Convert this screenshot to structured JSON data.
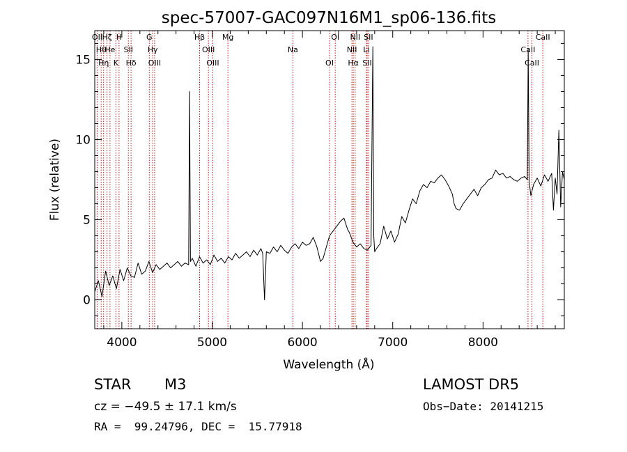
{
  "chart_data": {
    "type": "line",
    "title": "spec-57007-GAC097N16M1_sp06-136.fits",
    "xlabel": "Wavelength (Å)",
    "ylabel": "Flux (relative)",
    "xlim": [
      3700,
      8900
    ],
    "ylim": [
      -1.8,
      16.8
    ],
    "x_ticks": [
      4000,
      5000,
      6000,
      7000,
      8000
    ],
    "x_tick_labels": [
      "4000",
      "5000",
      "6000",
      "7000",
      "8000"
    ],
    "y_ticks": [
      0,
      5,
      10,
      15
    ],
    "y_tick_labels": [
      "0",
      "5",
      "10",
      "15"
    ],
    "grid": false,
    "series": [
      {
        "x": [
          3700,
          3740,
          3780,
          3820,
          3860,
          3900,
          3940,
          3980,
          4020,
          4060,
          4100,
          4140,
          4180,
          4220,
          4260,
          4300,
          4340,
          4380,
          4420,
          4460,
          4500,
          4540,
          4580,
          4620,
          4660,
          4700,
          4740,
          4750,
          4760,
          4780,
          4820,
          4860,
          4900,
          4940,
          4980,
          5020,
          5060,
          5100,
          5140,
          5180,
          5220,
          5260,
          5300,
          5340,
          5380,
          5420,
          5460,
          5500,
          5540,
          5560,
          5580,
          5600,
          5640,
          5680,
          5720,
          5760,
          5800,
          5840,
          5880,
          5920,
          5960,
          6000,
          6040,
          6080,
          6120,
          6160,
          6200,
          6230,
          6260,
          6300,
          6340,
          6380,
          6420,
          6460,
          6500,
          6520,
          6540,
          6560,
          6600,
          6640,
          6680,
          6720,
          6760,
          6780,
          6790,
          6800,
          6820,
          6860,
          6900,
          6940,
          6980,
          7020,
          7060,
          7100,
          7140,
          7180,
          7220,
          7260,
          7300,
          7340,
          7380,
          7420,
          7460,
          7500,
          7540,
          7580,
          7620,
          7660,
          7680,
          7700,
          7740,
          7780,
          7820,
          7860,
          7900,
          7940,
          7980,
          8020,
          8060,
          8100,
          8140,
          8180,
          8220,
          8260,
          8300,
          8340,
          8380,
          8420,
          8460,
          8490,
          8500,
          8510,
          8530,
          8560,
          8600,
          8640,
          8680,
          8720,
          8760,
          8780,
          8800,
          8820,
          8840,
          8860,
          8880,
          8900
        ],
        "y": [
          0.5,
          1.2,
          0.2,
          1.8,
          0.9,
          1.5,
          0.7,
          1.9,
          1.2,
          2.0,
          1.5,
          1.4,
          2.3,
          1.6,
          1.8,
          2.4,
          1.7,
          2.2,
          1.9,
          2.1,
          2.3,
          2.0,
          2.2,
          2.4,
          2.1,
          2.3,
          2.2,
          13.0,
          2.4,
          2.6,
          2.1,
          2.7,
          2.3,
          2.5,
          2.2,
          2.8,
          2.4,
          2.6,
          2.3,
          2.7,
          2.5,
          2.9,
          2.6,
          2.8,
          3.0,
          2.7,
          3.1,
          2.8,
          3.2,
          2.9,
          0.0,
          3.0,
          2.9,
          3.3,
          3.0,
          3.4,
          3.1,
          2.9,
          3.3,
          3.5,
          3.2,
          3.6,
          3.4,
          3.5,
          3.9,
          3.3,
          2.4,
          2.6,
          3.2,
          4.0,
          4.3,
          4.6,
          4.9,
          5.1,
          4.4,
          4.2,
          3.9,
          3.6,
          3.3,
          3.5,
          3.2,
          3.1,
          3.4,
          15.8,
          4.0,
          3.0,
          3.2,
          3.5,
          4.6,
          3.8,
          4.3,
          3.6,
          4.1,
          5.2,
          4.8,
          5.6,
          6.3,
          6.0,
          6.8,
          7.2,
          7.0,
          7.4,
          7.3,
          7.6,
          7.8,
          7.5,
          7.1,
          6.6,
          6.0,
          5.7,
          5.6,
          6.0,
          6.3,
          6.6,
          6.9,
          6.5,
          7.0,
          7.2,
          7.5,
          7.6,
          8.1,
          7.8,
          7.9,
          7.6,
          7.7,
          7.5,
          7.4,
          7.6,
          7.7,
          7.5,
          15.6,
          7.4,
          6.5,
          7.2,
          7.6,
          7.1,
          7.8,
          7.4,
          7.9,
          5.6,
          7.6,
          6.6,
          10.6,
          5.8,
          8.0,
          7.5
        ]
      }
    ],
    "line_markers": [
      {
        "wl": 3727,
        "label": "OII"
      },
      {
        "wl": 3771,
        "label": "Hθ"
      },
      {
        "wl": 3798,
        "label": "Hη"
      },
      {
        "wl": 3836,
        "label": "Hζ"
      },
      {
        "wl": 3869,
        "label": "He"
      },
      {
        "wl": 3934,
        "label": "K"
      },
      {
        "wl": 3969,
        "label": "H"
      },
      {
        "wl": 4072,
        "label": "SII"
      },
      {
        "wl": 4102,
        "label": "Hδ"
      },
      {
        "wl": 4304,
        "label": "G"
      },
      {
        "wl": 4341,
        "label": "Hγ"
      },
      {
        "wl": 4363,
        "label": "OIII"
      },
      {
        "wl": 4861,
        "label": "Hβ"
      },
      {
        "wl": 4959,
        "label": "OIII"
      },
      {
        "wl": 5007,
        "label": "OIII"
      },
      {
        "wl": 5175,
        "label": "Mg"
      },
      {
        "wl": 5894,
        "label": "Na"
      },
      {
        "wl": 6300,
        "label": "OI"
      },
      {
        "wl": 6363,
        "label": "OI"
      },
      {
        "wl": 6548,
        "label": "NII"
      },
      {
        "wl": 6563,
        "label": "Hα"
      },
      {
        "wl": 6584,
        "label": "NII"
      },
      {
        "wl": 6708,
        "label": "Li"
      },
      {
        "wl": 6717,
        "label": "SII"
      },
      {
        "wl": 6731,
        "label": "SII"
      },
      {
        "wl": 8498,
        "label": "CaII"
      },
      {
        "wl": 8542,
        "label": "CaII"
      },
      {
        "wl": 8662,
        "label": "CaII"
      }
    ],
    "marker_color": "#b22222"
  },
  "footer": {
    "class_label": "STAR",
    "subclass": "M3",
    "cz": "cz = −49.5 ± 17.1 km/s",
    "coords": "RA =  99.24796, DEC =  15.77918",
    "survey": "LAMOST DR5",
    "obs_date": "Obs−Date: 20141215"
  }
}
